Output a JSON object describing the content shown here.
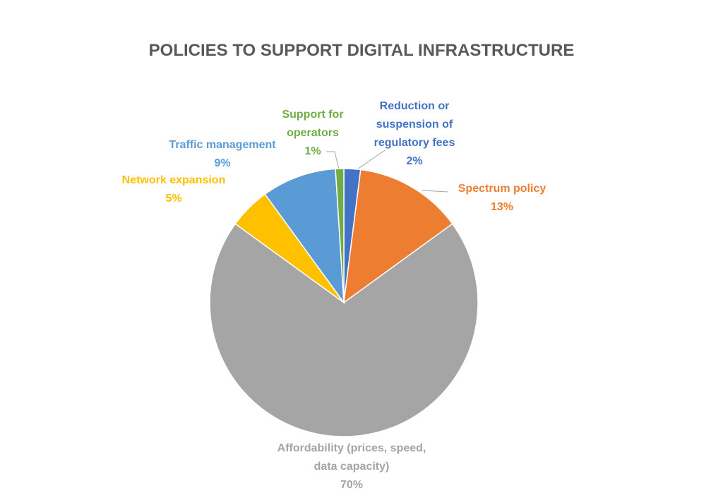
{
  "chart_data": {
    "type": "pie",
    "title": "POLICIES TO SUPPORT DIGITAL INFRASTRUCTURE",
    "categories": [
      "Reduction or suspension of regulatory fees",
      "Spectrum policy",
      "Affordability (prices, speed, data capacity)",
      "Network expansion",
      "Traffic management",
      "Support for operators"
    ],
    "values": [
      2,
      13,
      70,
      5,
      9,
      1
    ],
    "value_labels": [
      "2%",
      "13%",
      "70%",
      "5%",
      "9%",
      "1%"
    ],
    "colors": [
      "#4472c4",
      "#ed7d31",
      "#a5a5a5",
      "#ffc000",
      "#5b9bd5",
      "#70ad47"
    ]
  }
}
